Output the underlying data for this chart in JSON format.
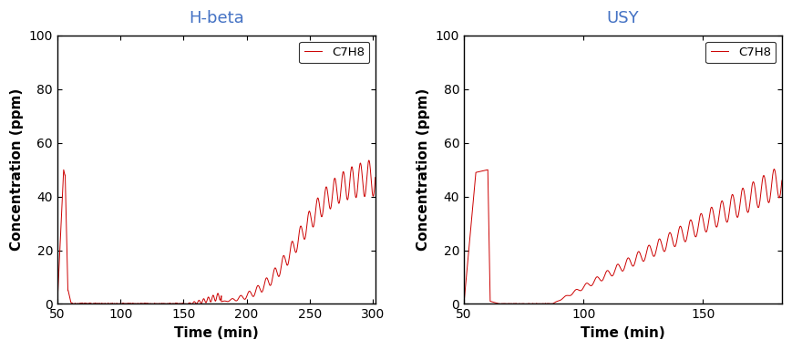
{
  "title_left": "H-beta",
  "title_right": "USY",
  "title_color": "#4472c4",
  "ylabel": "Concentration (ppm)",
  "xlabel": "Time (min)",
  "legend_label": "C7H8",
  "line_color": "#cc0000",
  "ylim": [
    0,
    100
  ],
  "yticks": [
    0,
    20,
    40,
    60,
    80,
    100
  ],
  "plot1": {
    "xlim": [
      50,
      302
    ],
    "xticks": [
      50,
      100,
      150,
      200,
      250,
      300
    ],
    "xticklabels": [
      "50",
      "100",
      "150",
      "200",
      "250",
      "300"
    ]
  },
  "plot2": {
    "xlim": [
      50,
      183
    ],
    "xticks": [
      50,
      100,
      150
    ],
    "xticklabels": [
      "50",
      "100",
      "150"
    ]
  },
  "background_color": "#ffffff",
  "spine_color": "#000000",
  "tick_fontsize": 10,
  "label_fontsize": 11,
  "title_fontsize": 13
}
